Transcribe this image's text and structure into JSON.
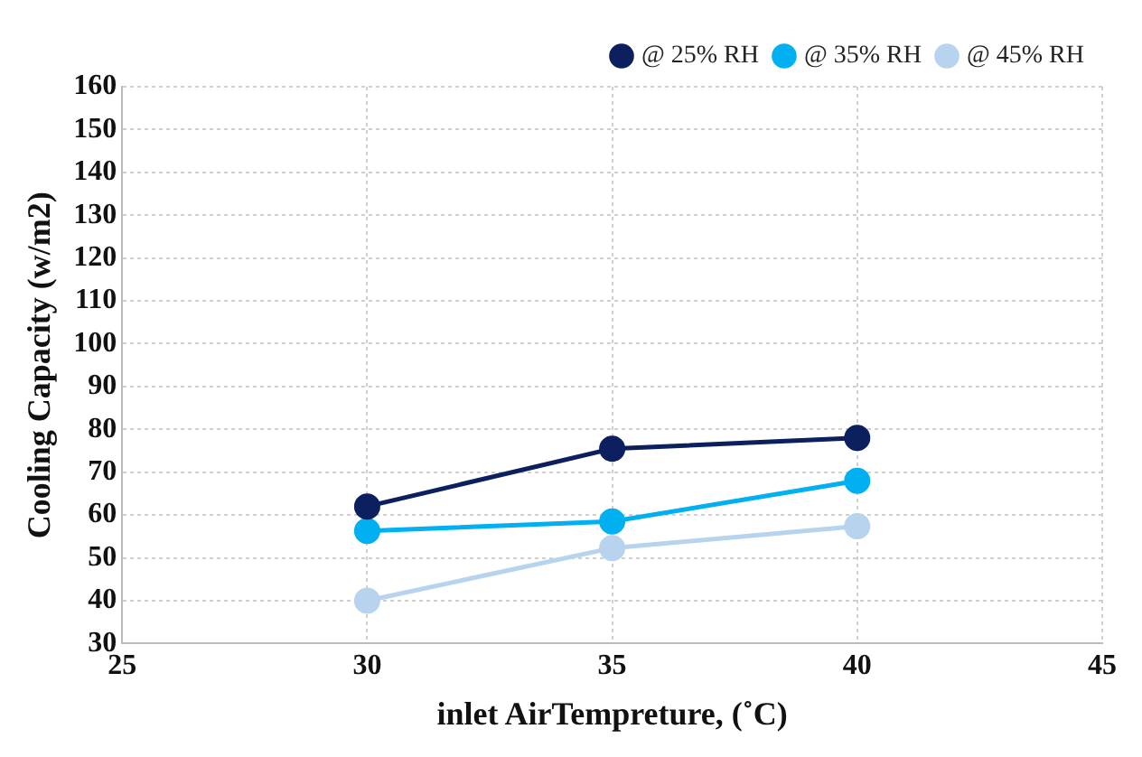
{
  "chart_data": {
    "type": "line",
    "xlabel": "inlet AirTempreture, (˚C)",
    "ylabel": "Cooling Capacity (w/m2)",
    "x": [
      30,
      35,
      40
    ],
    "series": [
      {
        "name": "@ 25% RH",
        "color": "#0c1f5e",
        "values": [
          62,
          75.5,
          78
        ]
      },
      {
        "name": "@ 35% RH",
        "color": "#00b0f0",
        "values": [
          56.3,
          58.5,
          68
        ]
      },
      {
        "name": "@ 45% RH",
        "color": "#b7d3ee",
        "values": [
          40,
          52.3,
          57.4
        ]
      }
    ],
    "xlim": [
      25,
      45
    ],
    "xticks": [
      25,
      30,
      35,
      40,
      45
    ],
    "ylim": [
      30,
      160
    ],
    "yticks": [
      30,
      40,
      50,
      60,
      70,
      80,
      90,
      100,
      110,
      120,
      130,
      140,
      150,
      160
    ],
    "grid": true,
    "legend": "top right",
    "marker": "circle",
    "line_style": "solid"
  }
}
